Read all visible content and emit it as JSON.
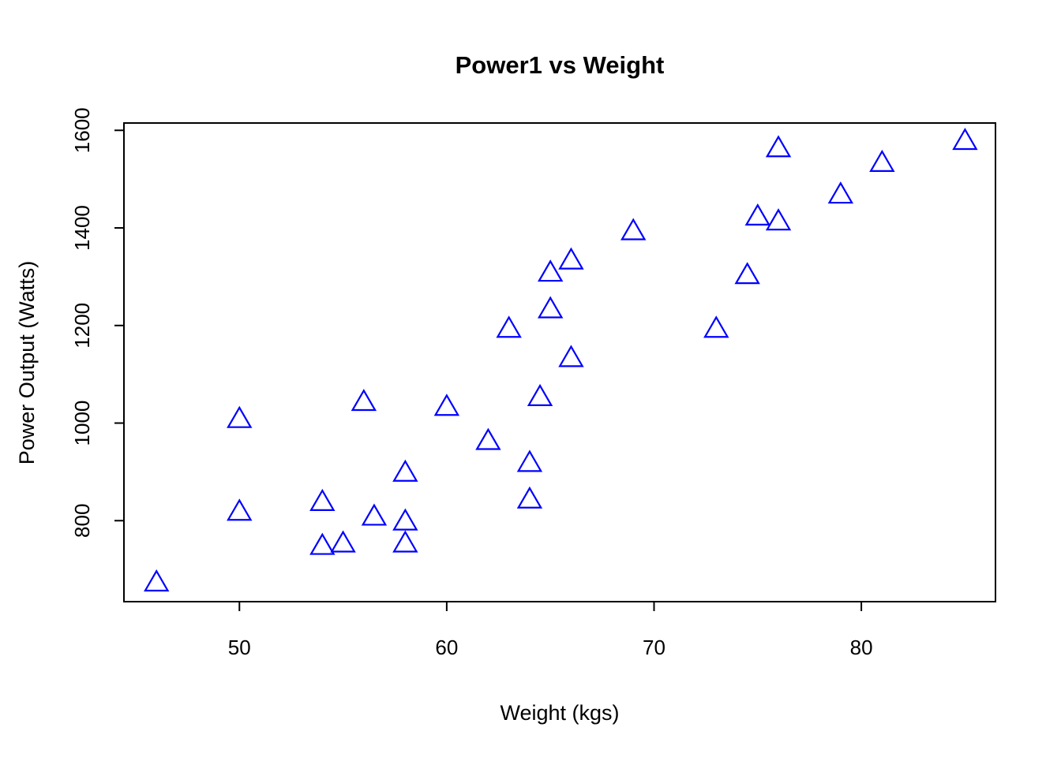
{
  "chart_data": {
    "type": "scatter",
    "title": "Power1 vs Weight",
    "xlabel": "Weight (kgs)",
    "ylabel": "Power Output (Watts)",
    "grid": false,
    "legend": "none",
    "background_color": "#FFFFFF",
    "axis_color": "#000000",
    "text_color": "#000000",
    "xlim": [
      44.43,
      86.47
    ],
    "ylim": [
      634,
      1615
    ],
    "x_ticks": [
      50,
      60,
      70,
      80
    ],
    "y_ticks": [
      800,
      1000,
      1200,
      1400,
      1600
    ],
    "marker": {
      "shape": "open-triangle-up",
      "style_note": "R pch=2 hollow triangle",
      "color": "#0000FF",
      "radius_px": 16.5,
      "stroke_px": 2.2
    },
    "points": [
      [
        46,
        670
      ],
      [
        50,
        815
      ],
      [
        50,
        1005
      ],
      [
        54,
        745
      ],
      [
        54,
        835
      ],
      [
        55,
        750
      ],
      [
        56,
        1040
      ],
      [
        56.5,
        805
      ],
      [
        58,
        750
      ],
      [
        58,
        795
      ],
      [
        58,
        895
      ],
      [
        60,
        1030
      ],
      [
        62,
        960
      ],
      [
        63,
        1190
      ],
      [
        64,
        840
      ],
      [
        64,
        915
      ],
      [
        64.5,
        1050
      ],
      [
        65,
        1230
      ],
      [
        65,
        1305
      ],
      [
        66,
        1130
      ],
      [
        66,
        1330
      ],
      [
        69,
        1390
      ],
      [
        73,
        1190
      ],
      [
        74.5,
        1300
      ],
      [
        75,
        1420
      ],
      [
        76,
        1410
      ],
      [
        76,
        1560
      ],
      [
        79,
        1465
      ],
      [
        81,
        1530
      ],
      [
        85,
        1575
      ]
    ]
  }
}
